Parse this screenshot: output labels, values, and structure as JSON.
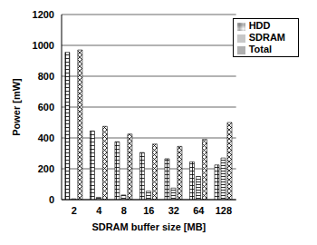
{
  "chart_data": {
    "type": "bar",
    "categories": [
      "2",
      "4",
      "8",
      "16",
      "32",
      "64",
      "128"
    ],
    "series": [
      {
        "name": "HDD",
        "color": "#000000",
        "values": [
          955,
          445,
          375,
          305,
          265,
          245,
          225
        ]
      },
      {
        "name": "SDRAM",
        "color": "#000000",
        "values": [
          5,
          15,
          30,
          55,
          75,
          150,
          270
        ]
      },
      {
        "name": "Total",
        "color": "#000000",
        "values": [
          970,
          475,
          425,
          360,
          345,
          390,
          500
        ]
      }
    ],
    "x_label": "SDRAM buffer size [MB]",
    "y_label": "Power [mW]",
    "ylim": [
      0,
      1200
    ],
    "yticks": [
      0,
      200,
      400,
      600,
      800,
      1000,
      1200
    ],
    "grid": true,
    "legend": "upper right"
  }
}
